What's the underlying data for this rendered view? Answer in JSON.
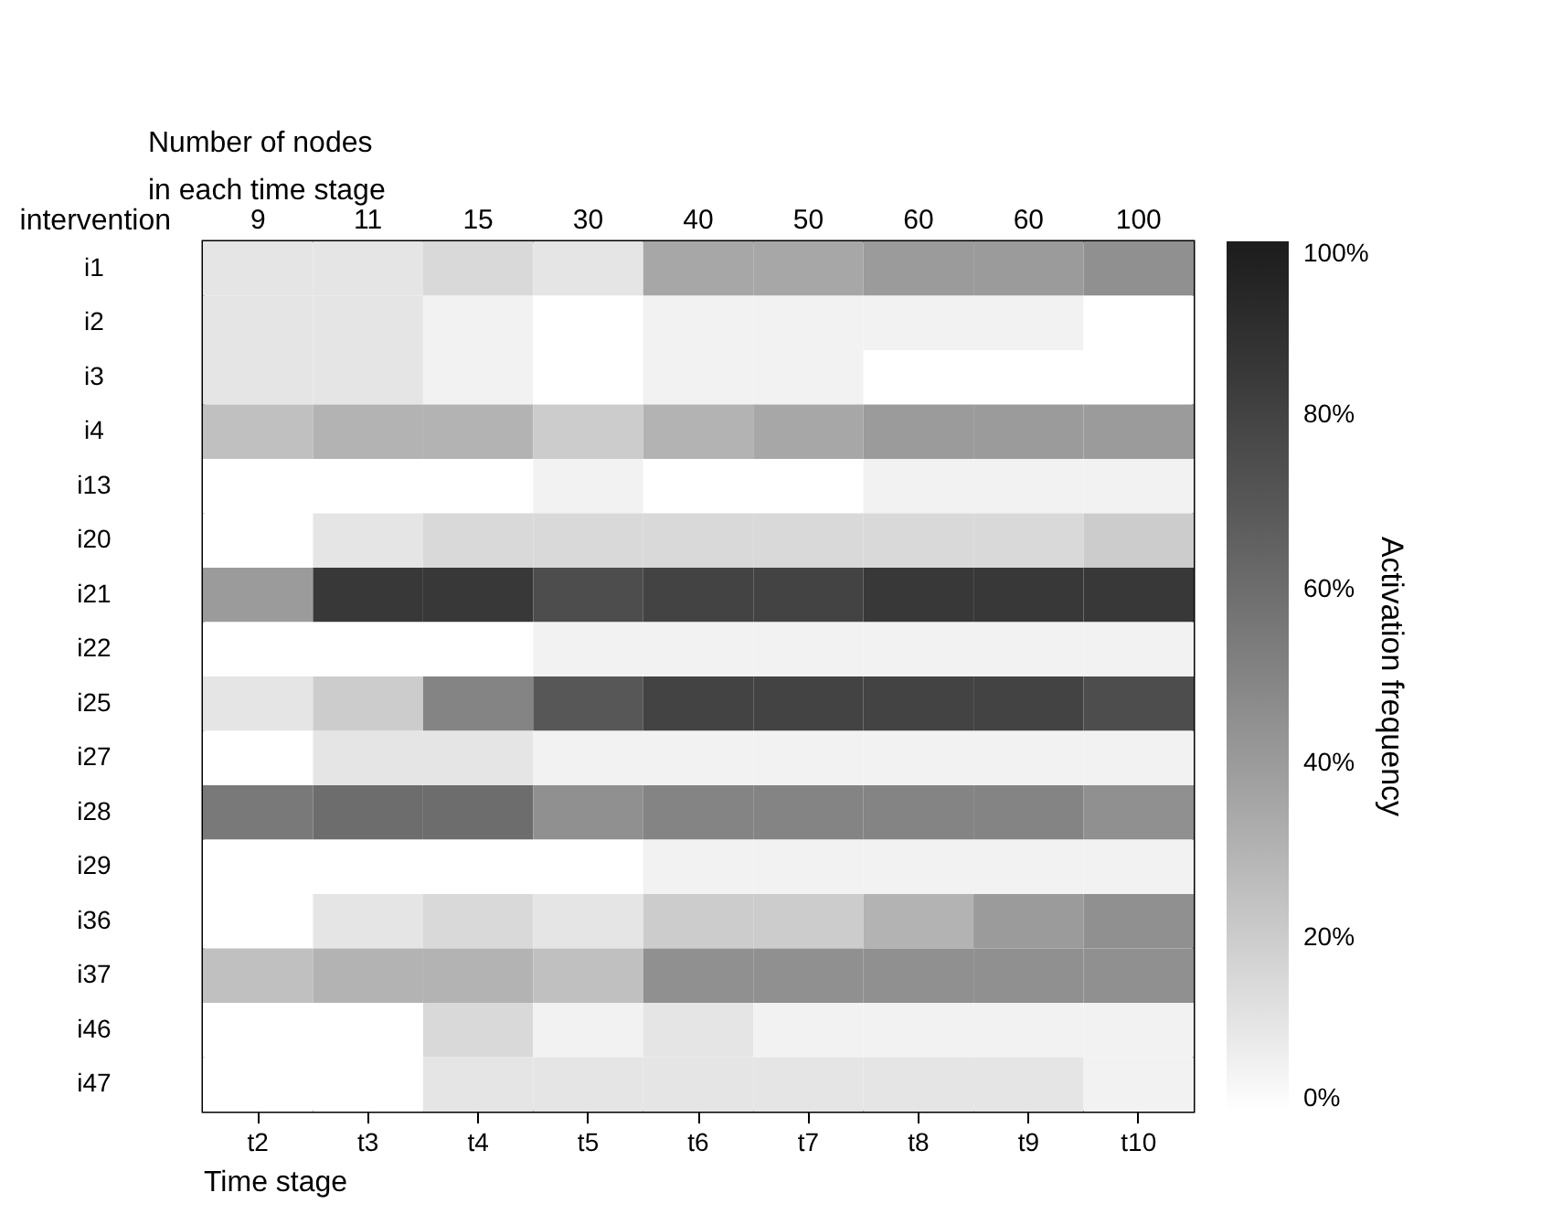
{
  "chart_data": {
    "type": "heatmap",
    "xlabel": "Time stage",
    "ylabel": "intervention",
    "x2label": "Number of nodes in each time stage",
    "clabel": "Activation frequency",
    "categories": [
      "t2",
      "t3",
      "t4",
      "t5",
      "t6",
      "t7",
      "t8",
      "t9",
      "t10"
    ],
    "y_categories": [
      "i1",
      "i2",
      "i3",
      "i4",
      "i13",
      "i20",
      "i21",
      "i22",
      "i25",
      "i27",
      "i28",
      "i29",
      "i36",
      "i37",
      "i46",
      "i47"
    ],
    "cells": [
      [
        10,
        10,
        15,
        10,
        35,
        35,
        40,
        40,
        45
      ],
      [
        10,
        10,
        5,
        0,
        5,
        5,
        5,
        5,
        0
      ],
      [
        10,
        10,
        5,
        0,
        5,
        5,
        0,
        0,
        0
      ],
      [
        25,
        30,
        30,
        20,
        30,
        35,
        40,
        40,
        40
      ],
      [
        0,
        0,
        0,
        5,
        0,
        0,
        5,
        5,
        5
      ],
      [
        0,
        10,
        15,
        15,
        15,
        15,
        15,
        15,
        20
      ],
      [
        40,
        85,
        85,
        75,
        80,
        80,
        85,
        85,
        85
      ],
      [
        0,
        0,
        0,
        5,
        5,
        5,
        5,
        5,
        5
      ],
      [
        10,
        20,
        50,
        70,
        80,
        80,
        80,
        80,
        75
      ],
      [
        0,
        10,
        10,
        5,
        5,
        5,
        5,
        5,
        5
      ],
      [
        55,
        60,
        60,
        45,
        50,
        50,
        50,
        50,
        45
      ],
      [
        0,
        0,
        0,
        0,
        5,
        5,
        5,
        5,
        5
      ],
      [
        0,
        10,
        15,
        10,
        20,
        20,
        30,
        40,
        45
      ],
      [
        25,
        30,
        30,
        25,
        45,
        45,
        45,
        45,
        45
      ],
      [
        0,
        0,
        15,
        5,
        10,
        5,
        5,
        5,
        5
      ],
      [
        0,
        0,
        10,
        10,
        10,
        10,
        10,
        10,
        5
      ]
    ],
    "clim": [
      0,
      100
    ],
    "cticks": [
      {
        "value": 0,
        "label": "0%"
      },
      {
        "value": 20,
        "label": "20%"
      },
      {
        "value": 40,
        "label": "40%"
      },
      {
        "value": 60,
        "label": "60%"
      },
      {
        "value": 80,
        "label": "80%"
      },
      {
        "value": 100,
        "label": "100%"
      }
    ],
    "annotations": [
      "9",
      "11",
      "15",
      "30",
      "40",
      "50",
      "60",
      "60",
      "100"
    ]
  }
}
